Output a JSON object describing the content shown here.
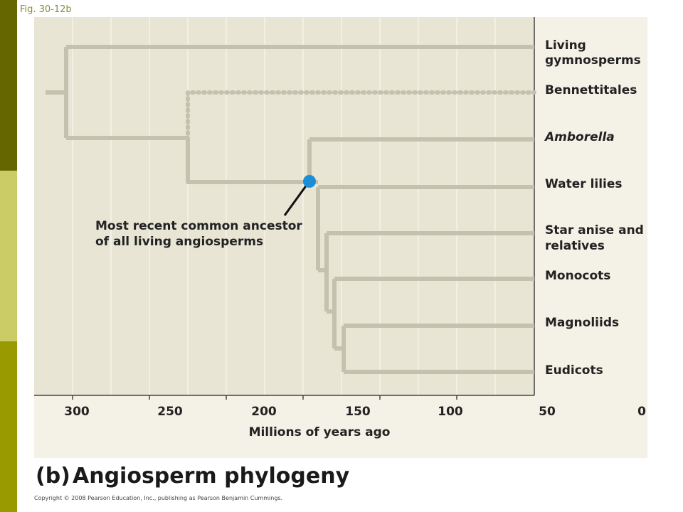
{
  "fig_label": "Fig. 30-12b",
  "panel_letter": "(b)",
  "panel_title": "Angiosperm phylogeny",
  "copyright": "Copyright © 2008 Pearson Education, Inc., publishing as Pearson Benjamin Cummings.",
  "axis": {
    "title": "Millions of years ago",
    "ticks": [
      "300",
      "250",
      "200",
      "150",
      "100",
      "50",
      "0"
    ]
  },
  "taxa": [
    {
      "line1": "Living",
      "line2": "gymnosperms",
      "italic": false
    },
    {
      "line1": "Bennettitales",
      "line2": "",
      "italic": false
    },
    {
      "line1": "Amborella",
      "line2": "",
      "italic": true
    },
    {
      "line1": "Water lilies",
      "line2": "",
      "italic": false
    },
    {
      "line1": "Star anise and",
      "line2": "relatives",
      "italic": false
    },
    {
      "line1": "Monocots",
      "line2": "",
      "italic": false
    },
    {
      "line1": "Magnoliids",
      "line2": "",
      "italic": false
    },
    {
      "line1": "Eudicots",
      "line2": "",
      "italic": false
    }
  ],
  "annotation": {
    "line1": "Most recent common ancestor",
    "line2": "of all living angiosperms"
  },
  "colors": {
    "sidebar_dark": "#666600",
    "sidebar_light": "#cccc66",
    "sidebar_mid": "#999900",
    "panel_bg": "#f4f1e7",
    "plot_bg": "#e8e5d4",
    "branch": "#c4c1ae",
    "node": "#1a8fd6"
  }
}
